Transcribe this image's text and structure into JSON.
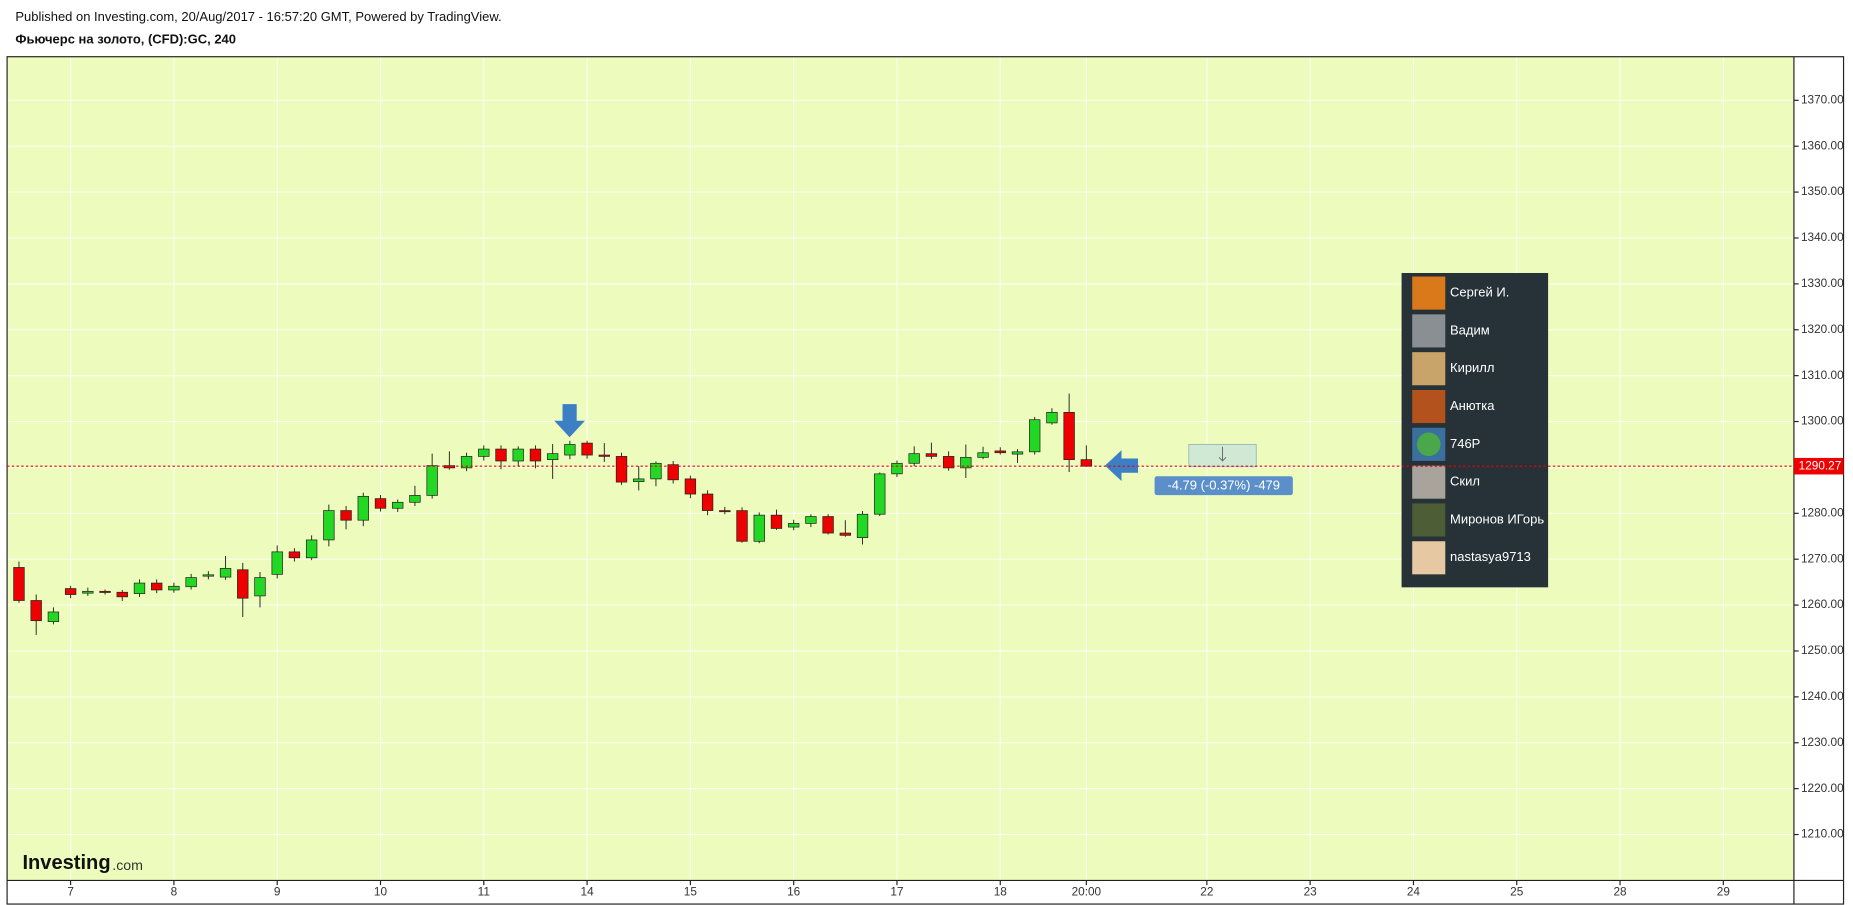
{
  "chart_data": {
    "type": "candlestick",
    "subtitle": "Published on Investing.com, 20/Aug/2017 - 16:57:20 GMT, Powered by TradingView.",
    "title": "Фьючерс на золото, (CFD):GC, 240",
    "open": [
      1268.2,
      1261,
      1256.4,
      1263.6,
      1262.6,
      1263,
      1262.8,
      1262.5,
      1264.8,
      1263.3,
      1264,
      1266.3,
      1266.1,
      1267.7,
      1262,
      1266.7,
      1271.6,
      1270.3,
      1274.2,
      1280.6,
      1278.5,
      1283.2,
      1281.1,
      1282.4,
      1283.9,
      1290.4,
      1289.9,
      1292.4,
      1294,
      1291.4,
      1294,
      1291.7,
      1292.7,
      1295.3,
      1292.7,
      1292.4,
      1286.9,
      1287.5,
      1290.6,
      1287.5,
      1284.2,
      1280.6,
      1280.6,
      1273.9,
      1279.6,
      1277,
      1277.8,
      1279.3,
      1275.7,
      1274.7,
      1279.8,
      1288.6,
      1290.9,
      1293,
      1292.4,
      1289.9,
      1292.2,
      1293.6,
      1292.9,
      1293.4,
      1299.7,
      1302,
      1291.7
    ],
    "high": [
      1269.5,
      1262.3,
      1259.5,
      1264.2,
      1263.8,
      1263.4,
      1263.3,
      1265.6,
      1265.6,
      1264.9,
      1266.8,
      1267.4,
      1270.7,
      1269.2,
      1267.2,
      1273,
      1272.4,
      1275.2,
      1281.9,
      1281.6,
      1284.5,
      1284,
      1283,
      1286,
      1293,
      1293.5,
      1293.2,
      1294.8,
      1294.8,
      1294.6,
      1294.8,
      1295.1,
      1295.8,
      1295.8,
      1295.3,
      1293.2,
      1290.3,
      1291.3,
      1291.4,
      1288.2,
      1285,
      1281.4,
      1281.3,
      1280.2,
      1280.8,
      1278.6,
      1279.8,
      1279.8,
      1278.5,
      1280.5,
      1288.9,
      1291.5,
      1294.6,
      1295.4,
      1293.5,
      1295,
      1294.5,
      1294.4,
      1294,
      1301,
      1302.9,
      1306.1,
      1294.8
    ],
    "low": [
      1260.5,
      1253.5,
      1255.8,
      1261.5,
      1262,
      1262.3,
      1260.9,
      1261.8,
      1262.6,
      1262.7,
      1263.4,
      1265.6,
      1265.5,
      1257.4,
      1259.5,
      1265.8,
      1269.5,
      1269.8,
      1272.8,
      1276.5,
      1277.2,
      1280.4,
      1280.3,
      1281.6,
      1283.2,
      1289.5,
      1289.2,
      1291.5,
      1289.6,
      1290.2,
      1289.8,
      1287.5,
      1291.8,
      1291.9,
      1291.2,
      1286.2,
      1285,
      1285.9,
      1286.5,
      1283.3,
      1279.6,
      1279.8,
      1273.6,
      1273.5,
      1276.4,
      1276.3,
      1277,
      1275.4,
      1274.9,
      1273.2,
      1279.4,
      1287.9,
      1290.3,
      1291.8,
      1289.3,
      1287.7,
      1291.8,
      1292.8,
      1291,
      1292.8,
      1299.3,
      1289,
      1290.1
    ],
    "close": [
      1261,
      1256.6,
      1258.5,
      1262.3,
      1263,
      1262.8,
      1261.8,
      1264.8,
      1263.3,
      1264.1,
      1266,
      1266.6,
      1268,
      1261.5,
      1266,
      1271.6,
      1270.3,
      1274.2,
      1280.6,
      1278.5,
      1283.7,
      1281.1,
      1282.4,
      1283.9,
      1290.4,
      1289.9,
      1292.4,
      1294,
      1291.4,
      1294,
      1291.4,
      1293,
      1295,
      1292.7,
      1292.4,
      1286.8,
      1287.5,
      1290.9,
      1287.3,
      1284.2,
      1280.6,
      1280.5,
      1273.9,
      1279.6,
      1276.7,
      1277.8,
      1279.3,
      1275.7,
      1275.2,
      1279.8,
      1288.6,
      1290.9,
      1293,
      1292.4,
      1289.9,
      1292.2,
      1293.2,
      1293.2,
      1293.4,
      1300.4,
      1302,
      1291.7,
      1290.27
    ],
    "up_color": "#22d822",
    "down_color": "#ee0000",
    "background": "#edfcbc",
    "grid": true,
    "xlim": [
      -0.69,
      103.1
    ],
    "xticks": [
      {
        "value": 3,
        "label": "7"
      },
      {
        "value": 9,
        "label": "8"
      },
      {
        "value": 15,
        "label": "9"
      },
      {
        "value": 21,
        "label": "10"
      },
      {
        "value": 27,
        "label": "11"
      },
      {
        "value": 33,
        "label": "14"
      },
      {
        "value": 39,
        "label": "15"
      },
      {
        "value": 45,
        "label": "16"
      },
      {
        "value": 51,
        "label": "17"
      },
      {
        "value": 57,
        "label": "18"
      },
      {
        "value": 62,
        "label": "20:00"
      },
      {
        "value": 69,
        "label": "22"
      },
      {
        "value": 75,
        "label": "23"
      },
      {
        "value": 81,
        "label": "24"
      },
      {
        "value": 87,
        "label": "25"
      },
      {
        "value": 93,
        "label": "28"
      },
      {
        "value": 99,
        "label": "29"
      }
    ],
    "ylim": [
      1200,
      1379.5
    ],
    "yticks": [
      {
        "value": 1210,
        "label": "1210.00"
      },
      {
        "value": 1220,
        "label": "1220.00"
      },
      {
        "value": 1230,
        "label": "1230.00"
      },
      {
        "value": 1240,
        "label": "1240.00"
      },
      {
        "value": 1250,
        "label": "1250.00"
      },
      {
        "value": 1260,
        "label": "1260.00"
      },
      {
        "value": 1270,
        "label": "1270.00"
      },
      {
        "value": 1280,
        "label": "1280.00"
      },
      {
        "value": 1290,
        "label": "1290.00"
      },
      {
        "value": 1300,
        "label": "1300.00"
      },
      {
        "value": 1310,
        "label": "1310.00"
      },
      {
        "value": 1320,
        "label": "1320.00"
      },
      {
        "value": 1330,
        "label": "1330.00"
      },
      {
        "value": 1340,
        "label": "1340.00"
      },
      {
        "value": 1350,
        "label": "1350.00"
      },
      {
        "value": 1360,
        "label": "1360.00"
      },
      {
        "value": 1370,
        "label": "1370.00"
      }
    ],
    "last_price": 1290.27,
    "last_price_color": "#ee0000",
    "measure_label": "-4.79 (-0.37%) -479",
    "users": [
      "Сергей И.",
      "Вадим",
      "Кирилл",
      "Анютка",
      "746P",
      "Скил",
      "Миронов ИГорь",
      "nastasya9713"
    ],
    "watermark": [
      "Investing",
      ".com"
    ]
  }
}
